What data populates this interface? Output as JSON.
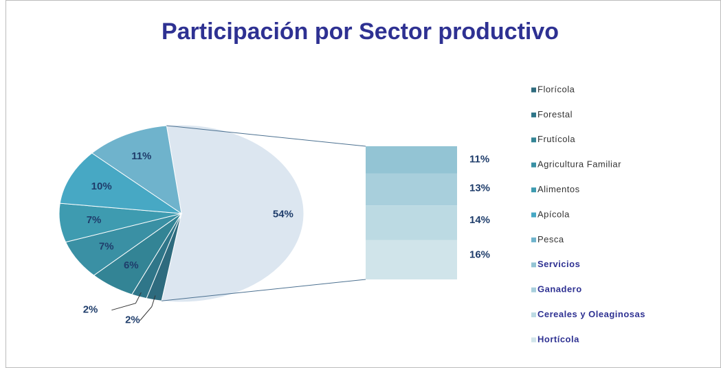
{
  "chart_data": {
    "type": "pie",
    "title": "Participación por Sector productivo",
    "pie": {
      "categories": [
        "Florícola",
        "Forestal",
        "Frutícola",
        "Agricultura Familiar",
        "Alimentos",
        "Apícola",
        "Pesca"
      ],
      "values": [
        2,
        2,
        6,
        7,
        7,
        10,
        11
      ],
      "value_labels": [
        "2%",
        "2%",
        "6%",
        "7%",
        "7%",
        "10%",
        "11%"
      ],
      "colors": [
        "#2e6b7e",
        "#2f7689",
        "#338495",
        "#3a90a4",
        "#3e9bb0",
        "#47a8c4",
        "#6fb3cc"
      ]
    },
    "other": {
      "value": 54,
      "value_label": "54%",
      "color": "#dce6f0"
    },
    "bar": {
      "categories": [
        "Servicios",
        "Ganadero",
        "Cereales y Oleaginosas",
        "Hortícola"
      ],
      "values": [
        11,
        13,
        14,
        16
      ],
      "value_labels": [
        "11%",
        "13%",
        "14%",
        "16%"
      ],
      "colors": [
        "#93c4d4",
        "#a8cfdc",
        "#bcdae3",
        "#d0e4ea"
      ]
    }
  }
}
